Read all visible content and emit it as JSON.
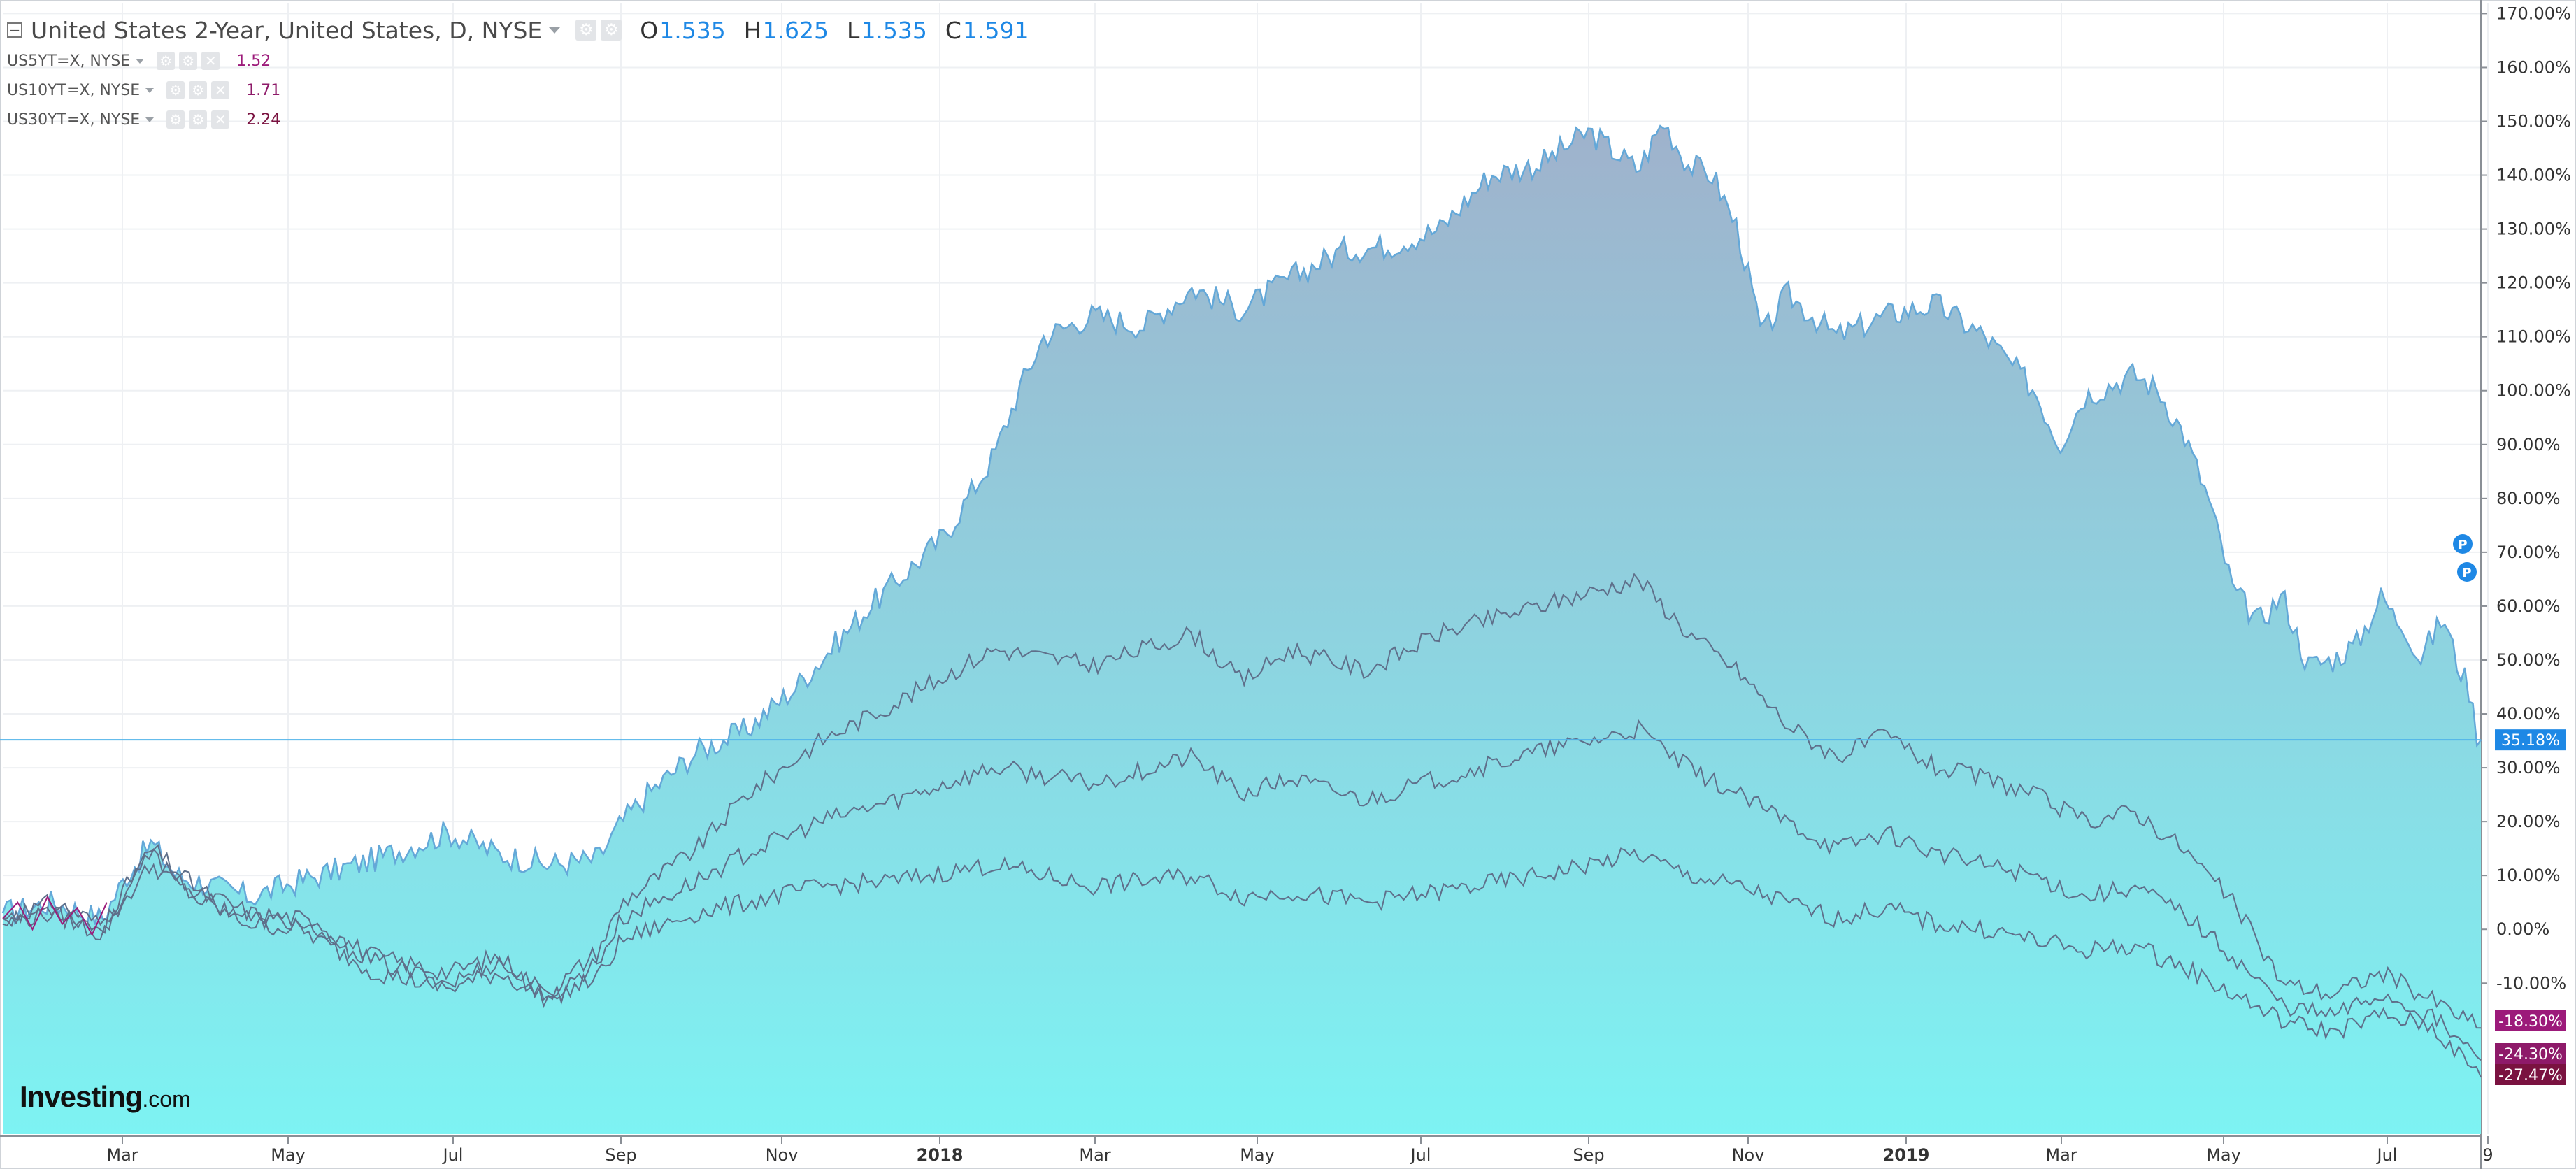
{
  "header": {
    "title": "United States 2-Year, United States, D, NYSE",
    "ohlc": [
      {
        "label": "O",
        "value": "1.535"
      },
      {
        "label": "H",
        "value": "1.625"
      },
      {
        "label": "L",
        "value": "1.535"
      },
      {
        "label": "C",
        "value": "1.591"
      }
    ]
  },
  "comparisons": [
    {
      "name": "US5YT=X, NYSE",
      "value": "1.52",
      "color": "#9c1a7a"
    },
    {
      "name": "US10YT=X, NYSE",
      "value": "1.71",
      "color": "#8e1a69"
    },
    {
      "name": "US30YT=X, NYSE",
      "value": "2.24",
      "color": "#7a1240"
    }
  ],
  "logo": {
    "main": "Investing",
    "suffix": ".com"
  },
  "colors": {
    "accent": "#1e88e5",
    "area_top": "#9fb2cc",
    "area_bottom": "#7df3f3",
    "line": "#64a8d8",
    "comparison_line": "#5f6f8a"
  },
  "chart_data": {
    "type": "area",
    "y_unit": "%",
    "ylim": [
      -38,
      172
    ],
    "y_ticks": [
      "170.00%",
      "160.00%",
      "150.00%",
      "140.00%",
      "130.00%",
      "120.00%",
      "110.00%",
      "100.00%",
      "90.00%",
      "80.00%",
      "70.00%",
      "60.00%",
      "50.00%",
      "40.00%",
      "30.00%",
      "20.00%",
      "10.00%",
      "0.00%",
      "-10.00%"
    ],
    "x_ticks": [
      "Mar",
      "May",
      "Jul",
      "Sep",
      "Nov",
      "2018",
      "Mar",
      "May",
      "Jul",
      "Sep",
      "Nov",
      "2019",
      "Mar",
      "May",
      "Jul",
      "9"
    ],
    "grid": true,
    "last_value_labels": [
      {
        "text": "35.18%",
        "value": 35.18,
        "color": "#1e88e5"
      },
      {
        "text": "-18.30%",
        "value": -18.3,
        "color": "#9c1a7a"
      },
      {
        "text": "-24.30%",
        "value": -24.3,
        "color": "#8e1a69"
      },
      {
        "text": "-27.47%",
        "value": -27.47,
        "color": "#7a1240"
      }
    ],
    "markers": [
      {
        "label": "P"
      },
      {
        "label": "P"
      }
    ],
    "series": [
      {
        "name": "United States 2-Year",
        "kind": "area",
        "x": [
          0,
          0.02,
          0.04,
          0.05,
          0.06,
          0.07,
          0.1,
          0.12,
          0.15,
          0.18,
          0.2,
          0.22,
          0.24,
          0.25,
          0.26,
          0.28,
          0.3,
          0.32,
          0.35,
          0.38,
          0.4,
          0.41,
          0.42,
          0.44,
          0.46,
          0.48,
          0.5,
          0.52,
          0.54,
          0.56,
          0.58,
          0.6,
          0.62,
          0.64,
          0.66,
          0.67,
          0.68,
          0.69,
          0.7,
          0.71,
          0.72,
          0.74,
          0.76,
          0.78,
          0.8,
          0.82,
          0.83,
          0.84,
          0.86,
          0.87,
          0.88,
          0.89,
          0.9,
          0.91,
          0.92,
          0.93,
          0.94,
          0.95,
          0.96,
          0.965,
          0.97,
          0.975,
          0.985,
          0.99,
          0.995,
          0.999,
          1.0
        ],
        "y": [
          3,
          5,
          2,
          10,
          16,
          10,
          6,
          9,
          13,
          18,
          14,
          12,
          13,
          20,
          25,
          33,
          37,
          45,
          60,
          73,
          88,
          100,
          110,
          114,
          112,
          119,
          115,
          121,
          126,
          127,
          130,
          140,
          142,
          148,
          141,
          150,
          142,
          140,
          130,
          110,
          118,
          110,
          114,
          116,
          110,
          100,
          90,
          99,
          103,
          100,
          92,
          80,
          63,
          57,
          62,
          49,
          50,
          53,
          62,
          58,
          56,
          50,
          58,
          50,
          45,
          35,
          35.18
        ]
      },
      {
        "name": "US5YT=X, NYSE",
        "kind": "line",
        "x": [
          0,
          0.02,
          0.04,
          0.05,
          0.06,
          0.08,
          0.1,
          0.12,
          0.15,
          0.18,
          0.2,
          0.22,
          0.24,
          0.25,
          0.28,
          0.3,
          0.33,
          0.36,
          0.4,
          0.44,
          0.48,
          0.5,
          0.52,
          0.55,
          0.58,
          0.62,
          0.66,
          0.68,
          0.7,
          0.72,
          0.74,
          0.76,
          0.78,
          0.8,
          0.82,
          0.84,
          0.86,
          0.88,
          0.9,
          0.92,
          0.94,
          0.96,
          0.98,
          1.0
        ],
        "y": [
          2,
          5,
          1,
          8,
          15,
          7,
          3,
          2,
          -5,
          -8,
          -5,
          -12,
          -4,
          5,
          15,
          25,
          35,
          42,
          52,
          49,
          55,
          46,
          52,
          48,
          55,
          60,
          65,
          55,
          48,
          38,
          32,
          36,
          30,
          28,
          25,
          20,
          22,
          15,
          5,
          -10,
          -12,
          -8,
          -13,
          -18.3
        ]
      },
      {
        "name": "US10YT=X, NYSE",
        "kind": "line",
        "x": [
          0,
          0.02,
          0.04,
          0.05,
          0.06,
          0.08,
          0.1,
          0.12,
          0.15,
          0.18,
          0.2,
          0.22,
          0.24,
          0.25,
          0.28,
          0.3,
          0.33,
          0.36,
          0.4,
          0.44,
          0.48,
          0.5,
          0.52,
          0.55,
          0.58,
          0.62,
          0.66,
          0.68,
          0.7,
          0.72,
          0.74,
          0.76,
          0.78,
          0.8,
          0.82,
          0.84,
          0.86,
          0.88,
          0.9,
          0.92,
          0.94,
          0.96,
          0.98,
          1.0
        ],
        "y": [
          2,
          4,
          0,
          7,
          14,
          6,
          2,
          1,
          -6,
          -10,
          -6,
          -13,
          -6,
          2,
          9,
          14,
          20,
          24,
          30,
          27,
          32,
          25,
          28,
          24,
          28,
          33,
          37,
          30,
          25,
          20,
          15,
          18,
          14,
          12,
          10,
          6,
          8,
          3,
          -5,
          -14,
          -16,
          -12,
          -16,
          -24.3
        ]
      },
      {
        "name": "US30YT=X, NYSE",
        "kind": "line",
        "x": [
          0,
          0.02,
          0.04,
          0.05,
          0.06,
          0.08,
          0.1,
          0.12,
          0.15,
          0.18,
          0.2,
          0.22,
          0.24,
          0.25,
          0.28,
          0.3,
          0.33,
          0.36,
          0.4,
          0.44,
          0.48,
          0.5,
          0.52,
          0.55,
          0.58,
          0.62,
          0.66,
          0.68,
          0.7,
          0.72,
          0.74,
          0.76,
          0.78,
          0.8,
          0.82,
          0.84,
          0.86,
          0.88,
          0.9,
          0.92,
          0.94,
          0.96,
          0.98,
          1.0
        ],
        "y": [
          1,
          3,
          -1,
          6,
          12,
          5,
          1,
          0,
          -8,
          -11,
          -8,
          -13,
          -9,
          -2,
          3,
          5,
          8,
          9,
          12,
          8,
          10,
          6,
          7,
          5,
          7,
          10,
          14,
          10,
          8,
          5,
          2,
          4,
          1,
          0,
          -2,
          -4,
          -3,
          -7,
          -12,
          -17,
          -19,
          -16,
          -18,
          -27.47
        ]
      }
    ]
  }
}
